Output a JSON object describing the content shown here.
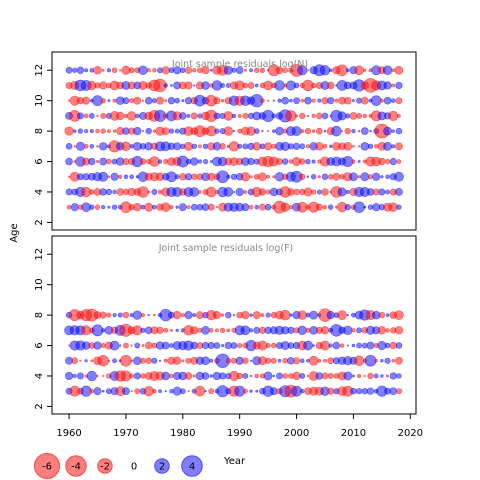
{
  "chart_data": {
    "type": "scatter",
    "encoding": "bubble",
    "xlabel": "Year",
    "ylabel": "Age",
    "x_range": [
      1957,
      2021
    ],
    "x_ticks": [
      1960,
      1970,
      1980,
      1990,
      2000,
      2010,
      2020
    ],
    "colors": {
      "positive": "#0000ff",
      "negative": "#ff0000"
    },
    "panels": [
      {
        "title": "Joint sample residuals log(N)",
        "y_range": [
          1.5,
          13.2
        ],
        "y_ticks": [
          2,
          4,
          6,
          8,
          10,
          12
        ],
        "years": [
          1960,
          2018
        ],
        "ages": [
          3,
          12
        ]
      },
      {
        "title": "Joint sample residuals log(F)",
        "y_range": [
          1.5,
          13.2
        ],
        "y_ticks": [
          2,
          4,
          6,
          8,
          10,
          12
        ],
        "years": [
          1960,
          2018
        ],
        "ages": [
          3,
          8
        ]
      }
    ],
    "legend": {
      "placement": "bottom-left",
      "values": [
        -6,
        -4,
        -2,
        0,
        2,
        4
      ],
      "labels": [
        "-6",
        "-4",
        "-2",
        "0",
        "2",
        "4"
      ]
    }
  }
}
